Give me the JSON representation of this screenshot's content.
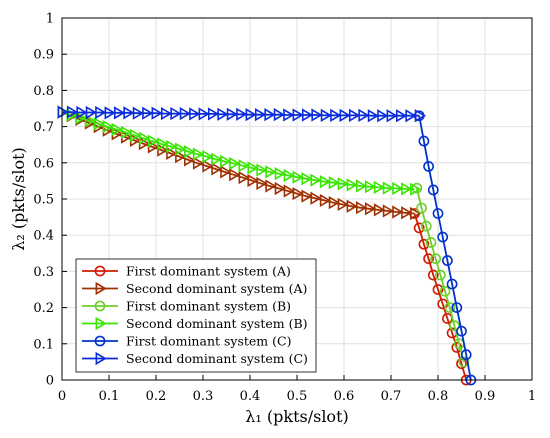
{
  "chart_data": {
    "type": "line",
    "xlabel": "λ₁ (pkts/slot)",
    "ylabel": "λ₂ (pkts/slot)",
    "xlim": [
      0,
      1
    ],
    "ylim": [
      0,
      1
    ],
    "xticks": [
      "0",
      "0.1",
      "0.2",
      "0.3",
      "0.4",
      "0.5",
      "0.6",
      "0.7",
      "0.8",
      "0.9",
      "1"
    ],
    "yticks": [
      "0",
      "0.1",
      "0.2",
      "0.3",
      "0.4",
      "0.5",
      "0.6",
      "0.7",
      "0.8",
      "0.9",
      "1"
    ],
    "grid": true,
    "legend_position": "bottom-left",
    "series": [
      {
        "name": "First dominant system (A)",
        "color": "#d01c00",
        "marker": "circle",
        "x": [
          0.75,
          0.76,
          0.77,
          0.78,
          0.79,
          0.8,
          0.81,
          0.82,
          0.83,
          0.84,
          0.85,
          0.86
        ],
        "y": [
          0.46,
          0.42,
          0.375,
          0.335,
          0.29,
          0.25,
          0.21,
          0.17,
          0.13,
          0.09,
          0.045,
          0.0
        ]
      },
      {
        "name": "Second dominant system (A)",
        "color": "#a03000",
        "marker": "triangle-right",
        "x": [
          0.0,
          0.019,
          0.038,
          0.058,
          0.077,
          0.096,
          0.115,
          0.135,
          0.154,
          0.173,
          0.192,
          0.212,
          0.231,
          0.25,
          0.269,
          0.288,
          0.308,
          0.327,
          0.346,
          0.365,
          0.385,
          0.404,
          0.423,
          0.442,
          0.462,
          0.481,
          0.5,
          0.519,
          0.538,
          0.558,
          0.577,
          0.596,
          0.615,
          0.635,
          0.654,
          0.673,
          0.692,
          0.712,
          0.731,
          0.75
        ],
        "y": [
          0.74,
          0.73,
          0.72,
          0.71,
          0.7,
          0.69,
          0.68,
          0.671,
          0.662,
          0.653,
          0.644,
          0.635,
          0.626,
          0.617,
          0.608,
          0.599,
          0.591,
          0.583,
          0.575,
          0.567,
          0.559,
          0.551,
          0.543,
          0.536,
          0.529,
          0.522,
          0.515,
          0.508,
          0.502,
          0.496,
          0.49,
          0.485,
          0.48,
          0.476,
          0.473,
          0.47,
          0.467,
          0.464,
          0.462,
          0.46
        ]
      },
      {
        "name": "First dominant system (B)",
        "color": "#6ccf2a",
        "marker": "circle",
        "x": [
          0.755,
          0.765,
          0.775,
          0.785,
          0.795,
          0.805,
          0.815,
          0.825,
          0.835,
          0.845,
          0.855
        ],
        "y": [
          0.53,
          0.475,
          0.425,
          0.38,
          0.335,
          0.29,
          0.245,
          0.2,
          0.15,
          0.1,
          0.05
        ]
      },
      {
        "name": "Second dominant system (B)",
        "color": "#39e600",
        "marker": "triangle-right",
        "x": [
          0.0,
          0.019,
          0.038,
          0.058,
          0.077,
          0.096,
          0.115,
          0.135,
          0.154,
          0.173,
          0.192,
          0.212,
          0.231,
          0.25,
          0.269,
          0.288,
          0.308,
          0.327,
          0.346,
          0.365,
          0.385,
          0.404,
          0.423,
          0.442,
          0.462,
          0.481,
          0.5,
          0.519,
          0.538,
          0.558,
          0.577,
          0.596,
          0.615,
          0.635,
          0.654,
          0.673,
          0.692,
          0.712,
          0.731,
          0.75
        ],
        "y": [
          0.74,
          0.732,
          0.724,
          0.716,
          0.708,
          0.7,
          0.692,
          0.684,
          0.676,
          0.668,
          0.66,
          0.652,
          0.645,
          0.638,
          0.631,
          0.624,
          0.617,
          0.61,
          0.604,
          0.598,
          0.592,
          0.586,
          0.58,
          0.575,
          0.57,
          0.565,
          0.56,
          0.556,
          0.552,
          0.548,
          0.545,
          0.542,
          0.539,
          0.536,
          0.534,
          0.532,
          0.53,
          0.529,
          0.528,
          0.527
        ]
      },
      {
        "name": "First dominant system (C)",
        "color": "#0033cc",
        "marker": "circle",
        "x": [
          0.76,
          0.77,
          0.78,
          0.79,
          0.8,
          0.81,
          0.82,
          0.83,
          0.84,
          0.85,
          0.86
        ],
        "y": [
          0.73,
          0.66,
          0.59,
          0.525,
          0.46,
          0.395,
          0.33,
          0.265,
          0.2,
          0.135,
          0.07
        ]
      },
      {
        "name": "Second dominant system (C)",
        "color": "#0a2cd9",
        "marker": "triangle-right",
        "x": [
          0.0,
          0.02,
          0.04,
          0.06,
          0.08,
          0.1,
          0.12,
          0.14,
          0.16,
          0.18,
          0.2,
          0.22,
          0.24,
          0.26,
          0.28,
          0.3,
          0.32,
          0.34,
          0.36,
          0.38,
          0.4,
          0.42,
          0.44,
          0.46,
          0.48,
          0.5,
          0.52,
          0.54,
          0.56,
          0.58,
          0.6,
          0.62,
          0.64,
          0.66,
          0.68,
          0.7,
          0.72,
          0.74,
          0.76
        ],
        "y": [
          0.74,
          0.74,
          0.739,
          0.739,
          0.739,
          0.738,
          0.738,
          0.738,
          0.737,
          0.737,
          0.737,
          0.736,
          0.736,
          0.736,
          0.735,
          0.735,
          0.735,
          0.734,
          0.734,
          0.734,
          0.733,
          0.733,
          0.733,
          0.733,
          0.732,
          0.732,
          0.732,
          0.732,
          0.731,
          0.731,
          0.731,
          0.731,
          0.731,
          0.73,
          0.73,
          0.73,
          0.73,
          0.73,
          0.73
        ]
      }
    ],
    "extra_line_points": {
      "C_end": {
        "x": [
          0.86,
          0.87
        ],
        "y": [
          0.07,
          0.0
        ]
      }
    }
  }
}
